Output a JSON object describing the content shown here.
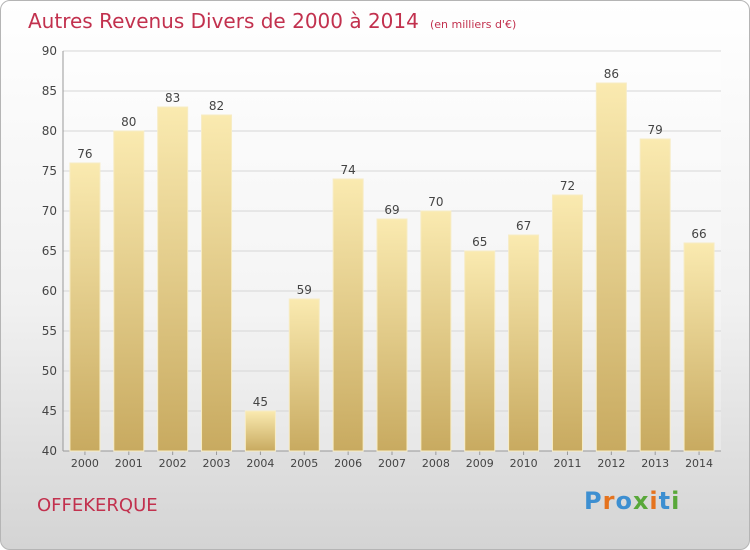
{
  "header": {
    "title": "Autres Revenus Divers de 2000 à 2014",
    "subtitle": "(en milliers d'€)"
  },
  "footer": {
    "city": "OFFEKERQUE",
    "brand": "Proxiti",
    "brand_colors": [
      "#3d8fd1",
      "#e5731e",
      "#3d8fd1",
      "#59a83a",
      "#e5731e",
      "#3d8fd1",
      "#59a83a"
    ]
  },
  "colors": {
    "bar_top": "#faeab0",
    "bar_bottom": "#c8aa60",
    "title": "#c2314e",
    "grid": "#d6d6d6"
  },
  "chart_data": {
    "type": "bar",
    "title": "Autres Revenus Divers de 2000 à 2014",
    "subtitle": "(en milliers d'€)",
    "xlabel": "",
    "ylabel": "",
    "categories": [
      "2000",
      "2001",
      "2002",
      "2003",
      "2004",
      "2005",
      "2006",
      "2007",
      "2008",
      "2009",
      "2010",
      "2011",
      "2012",
      "2013",
      "2014"
    ],
    "values": [
      76,
      80,
      83,
      82,
      45,
      59,
      74,
      69,
      70,
      65,
      67,
      72,
      86,
      79,
      66
    ],
    "ylim": [
      40,
      90
    ],
    "yticks": [
      40,
      45,
      50,
      55,
      60,
      65,
      70,
      75,
      80,
      85,
      90
    ],
    "grid": true,
    "data_labels": true
  }
}
